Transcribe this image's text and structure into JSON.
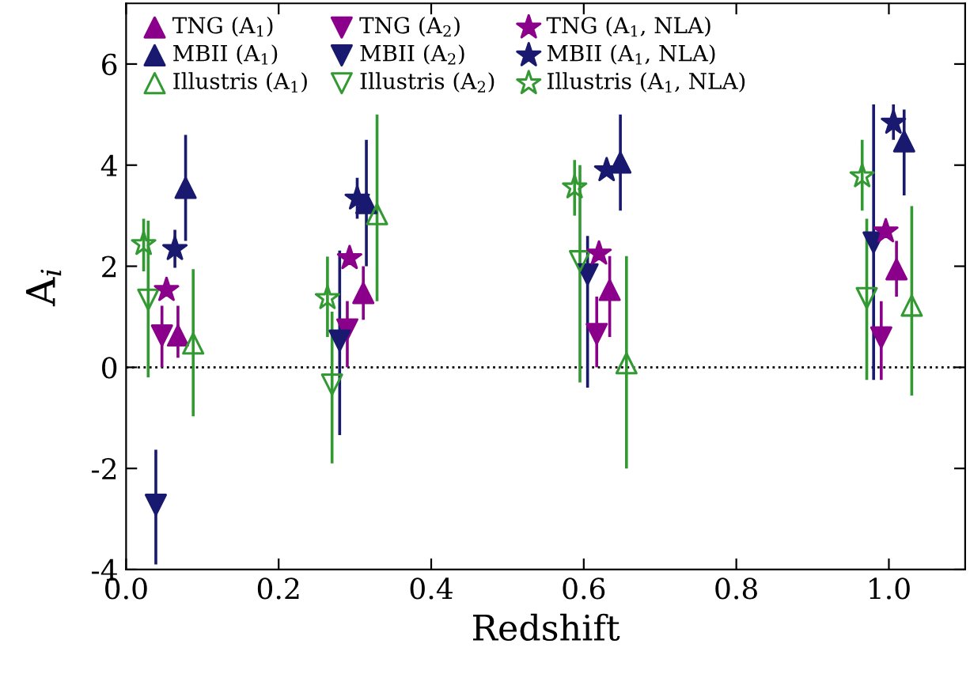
{
  "chart_data": {
    "type": "scatter",
    "xlabel": "Redshift",
    "ylabel": "A$_{i}$",
    "xlim": [
      0,
      1.1
    ],
    "ylim": [
      -4,
      7.2
    ],
    "xticks": [
      {
        "value": 0,
        "label": "0.0"
      },
      0.2,
      0.4,
      0.6,
      0.8,
      {
        "value": 1,
        "label": "1.0"
      }
    ],
    "yticks": [
      -4,
      -2,
      0,
      2,
      4,
      6
    ],
    "grid": false,
    "legend": "top left",
    "ref_lines": [
      {
        "axis": "y",
        "value": 0,
        "color": "#000000",
        "line_style": "dotted"
      }
    ],
    "series": [
      {
        "name": "TNG (A$_{1}$)",
        "color": "#8b008b",
        "marker": "triangle",
        "x": [
          0.068,
          0.311,
          0.634,
          1.01
        ],
        "values": [
          0.63,
          1.47,
          1.53,
          1.94
        ],
        "errors": [
          [
            0.19,
            1.22
          ],
          [
            0.94,
            2.0
          ],
          [
            0.6,
            2.2
          ],
          [
            1.4,
            2.5
          ]
        ]
      },
      {
        "name": "MBII (A$_{1}$)",
        "color": "#191970",
        "marker": "triangle",
        "x": [
          0.078,
          0.315,
          0.648,
          1.02
        ],
        "values": [
          3.55,
          3.25,
          4.05,
          4.47
        ],
        "errors": [
          [
            2.5,
            4.6
          ],
          [
            2.0,
            4.5
          ],
          [
            3.1,
            5.0
          ],
          [
            3.4,
            5.1
          ]
        ]
      },
      {
        "name": "Illustris (A$_{1}$)",
        "color": "#339933",
        "marker": "triangle_open",
        "x": [
          0.088,
          0.329,
          0.656,
          1.03
        ],
        "values": [
          0.47,
          3.03,
          0.08,
          1.22
        ],
        "errors": [
          [
            -0.97,
            1.94
          ],
          [
            1.31,
            5.0
          ],
          [
            -2.0,
            2.2
          ],
          [
            -0.56,
            3.19
          ]
        ]
      },
      {
        "name": "TNG (A$_{2}$)",
        "color": "#8b008b",
        "marker": "triangle_down",
        "x": [
          0.047,
          0.29,
          0.617,
          0.99
        ],
        "values": [
          0.63,
          0.75,
          0.66,
          0.59
        ],
        "errors": [
          [
            0,
            1.22
          ],
          [
            0,
            1.31
          ],
          [
            0,
            1.4
          ],
          [
            -0.25,
            1.31
          ]
        ]
      },
      {
        "name": "MBII (A$_{2}$)",
        "color": "#191970",
        "marker": "triangle_down",
        "x": [
          0.039,
          0.28,
          0.605,
          0.98
        ],
        "values": [
          -2.72,
          0.53,
          1.84,
          2.47
        ],
        "errors": [
          [
            -3.9,
            -1.63
          ],
          [
            -1.34,
            2.31
          ],
          [
            -0.4,
            2.6
          ],
          [
            -0.25,
            5.2
          ]
        ]
      },
      {
        "name": "Illustris (A$_{2}$)",
        "color": "#339933",
        "marker": "triangle_down_open",
        "x": [
          0.029,
          0.27,
          0.595,
          0.971
        ],
        "values": [
          1.34,
          -0.34,
          2.1,
          1.37
        ],
        "errors": [
          [
            -0.2,
            2.9
          ],
          [
            -1.9,
            1.1
          ],
          [
            -0.3,
            4.0
          ],
          [
            -0.25,
            2.94
          ]
        ]
      },
      {
        "name": "TNG (A$_{1}$, NLA)",
        "color": "#8b008b",
        "marker": "star",
        "x": [
          0.053,
          0.293,
          0.62,
          0.996
        ],
        "values": [
          1.53,
          2.16,
          2.25,
          2.69
        ]
      },
      {
        "name": "MBII (A$_{1}$, NLA)",
        "color": "#191970",
        "marker": "star",
        "x": [
          0.064,
          0.303,
          0.63,
          1.006
        ],
        "values": [
          2.34,
          3.34,
          3.9,
          4.84
        ],
        "errors": [
          [
            1.97,
            2.72
          ],
          [
            2.94,
            3.75
          ],
          null,
          [
            4.5,
            5.2
          ]
        ]
      },
      {
        "name": "Illustris (A$_{1}$, NLA)",
        "color": "#339933",
        "marker": "star_open",
        "x": [
          0.023,
          0.264,
          0.588,
          0.965
        ],
        "values": [
          2.44,
          1.37,
          3.56,
          3.78
        ],
        "errors": [
          [
            1.9,
            2.94
          ],
          [
            0.6,
            2.19
          ],
          [
            3.0,
            4.1
          ],
          [
            3.1,
            4.5
          ]
        ]
      }
    ]
  }
}
